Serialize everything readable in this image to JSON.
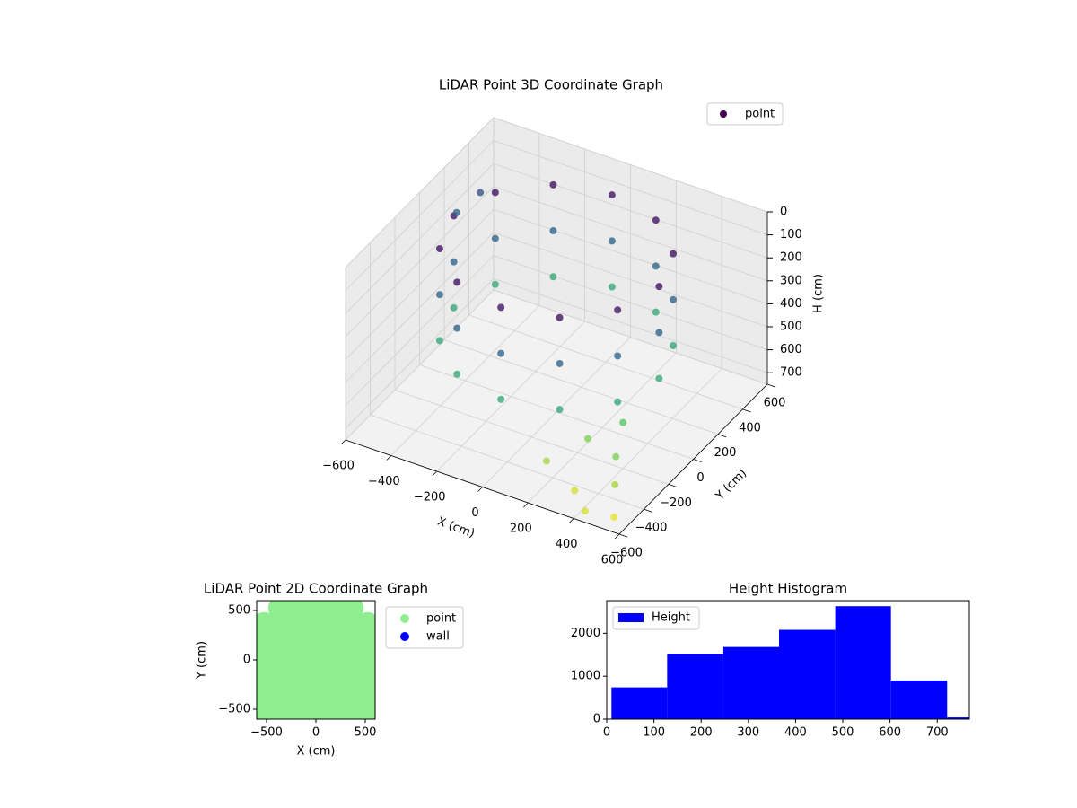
{
  "chart_data": [
    {
      "type": "scatter3d",
      "title": "LiDAR Point 3D Coordinate Graph",
      "x_label": "X (cm)",
      "y_label": "Y (cm)",
      "z_label": "H (cm)",
      "xlim": [
        -600,
        600
      ],
      "ylim": [
        -600,
        600
      ],
      "zlim": [
        0,
        750
      ],
      "z_inverted": true,
      "xticks": [
        {
          "value": -600,
          "label": "−600"
        },
        {
          "value": -400,
          "label": "−400"
        },
        {
          "value": -200,
          "label": "−200"
        },
        0,
        200,
        400,
        600
      ],
      "yticks": [
        {
          "value": -600,
          "label": "−600"
        },
        {
          "value": -400,
          "label": "−400"
        },
        {
          "value": -200,
          "label": "−200"
        },
        0,
        200,
        400,
        600
      ],
      "zticks": [
        0,
        100,
        200,
        300,
        400,
        500,
        600,
        700
      ],
      "cmap": [
        "#440154",
        "#3b528b",
        "#21918c",
        "#5ec962",
        "#fde725"
      ],
      "legend": "upper right",
      "grid": true,
      "series": [
        {
          "name": "point",
          "color": "#440154",
          "x": [
            450,
            390,
            225,
            0,
            -225,
            -390,
            -450,
            -390,
            -225,
            0,
            225,
            390,
            450,
            390,
            225,
            0,
            -225,
            -390,
            -450,
            -390,
            -225,
            0,
            225,
            390,
            450,
            390,
            225,
            0,
            -225,
            -390,
            -450,
            -390,
            -225,
            0,
            225,
            390,
            400,
            450,
            500,
            350,
            550,
            300,
            200,
            450,
            -600,
            -550
          ],
          "y": [
            0,
            225,
            390,
            450,
            390,
            225,
            0,
            -225,
            -390,
            -450,
            -390,
            -225,
            0,
            225,
            390,
            450,
            390,
            225,
            0,
            -225,
            -390,
            -450,
            -390,
            -225,
            0,
            225,
            390,
            450,
            390,
            225,
            0,
            -225,
            -390,
            -450,
            -390,
            -225,
            -200,
            -350,
            -450,
            -500,
            -550,
            -300,
            -450,
            -600,
            300,
            400
          ],
          "z": [
            50,
            50,
            50,
            50,
            50,
            50,
            50,
            50,
            50,
            50,
            50,
            50,
            250,
            250,
            250,
            250,
            250,
            250,
            250,
            250,
            250,
            250,
            250,
            250,
            450,
            450,
            450,
            450,
            450,
            450,
            450,
            450,
            450,
            450,
            450,
            450,
            550,
            600,
            650,
            700,
            720,
            600,
            650,
            700,
            250,
            200
          ]
        }
      ]
    },
    {
      "type": "scatter",
      "title": "LiDAR Point 2D Coordinate Graph",
      "x_label": "X (cm)",
      "y_label": "Y (cm)",
      "xlim": [
        -600,
        600
      ],
      "ylim": [
        -600,
        600
      ],
      "xticks": [
        {
          "value": -500,
          "label": "−500"
        },
        0,
        500
      ],
      "yticks": [
        {
          "value": -500,
          "label": "−500"
        },
        0,
        500
      ],
      "legend": "outside right",
      "series": [
        {
          "name": "point",
          "color": "#90ee90",
          "x": [
            -375,
            -225,
            -75,
            75,
            225,
            375,
            -525,
            -375,
            -225,
            -75,
            75,
            225,
            375,
            525,
            -525,
            -375,
            -225,
            -75,
            75,
            225,
            375,
            525,
            -525,
            -375,
            -225,
            -75,
            75,
            225,
            375,
            525,
            -525,
            -375,
            -225,
            -75,
            75,
            225,
            375,
            525,
            -525,
            -375,
            -225,
            -75,
            75,
            225,
            375,
            525,
            -525,
            -375,
            -225,
            -75,
            75,
            225,
            375,
            525,
            -525,
            -375,
            -225,
            -75,
            75,
            225,
            375,
            525
          ],
          "y": [
            525,
            525,
            525,
            525,
            525,
            525,
            375,
            375,
            375,
            375,
            375,
            375,
            375,
            375,
            225,
            225,
            225,
            225,
            225,
            225,
            225,
            225,
            75,
            75,
            75,
            75,
            75,
            75,
            75,
            75,
            -75,
            -75,
            -75,
            -75,
            -75,
            -75,
            -75,
            -75,
            -225,
            -225,
            -225,
            -225,
            -225,
            -225,
            -225,
            -225,
            -375,
            -375,
            -375,
            -375,
            -375,
            -375,
            -375,
            -375,
            -525,
            -525,
            -525,
            -525,
            -525,
            -525,
            -525,
            -525
          ]
        },
        {
          "name": "wall",
          "color": "#0000ff",
          "x": [],
          "y": []
        }
      ]
    },
    {
      "type": "histogram",
      "title": "Height Histogram",
      "name": "Height",
      "color": "#0000ff",
      "bins": [
        10,
        128,
        247,
        365,
        484,
        602,
        721,
        839
      ],
      "values": [
        740,
        1520,
        1680,
        2080,
        2630,
        900,
        40
      ],
      "xlim": [
        0,
        768
      ],
      "ylim": [
        0,
        2760
      ],
      "xticks": [
        0,
        100,
        200,
        300,
        400,
        500,
        600,
        700
      ],
      "yticks": [
        0,
        1000,
        2000
      ],
      "legend": "upper left"
    }
  ]
}
